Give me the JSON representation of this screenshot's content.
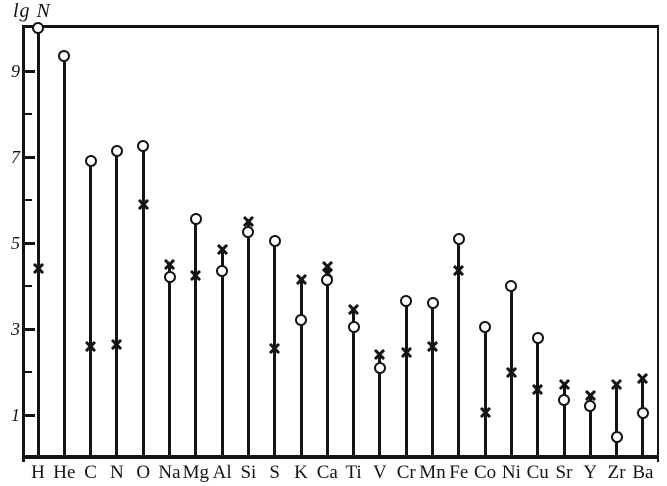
{
  "page": {
    "background": "#ffffff",
    "ink": "#141414"
  },
  "chart_data": {
    "type": "scatter",
    "subtype": "lollipop-abundance-diagram",
    "title": "",
    "xlabel": "",
    "ylabel": "lg N",
    "grid": false,
    "legend_visible": false,
    "y_axis": {
      "range": [
        0,
        10.1
      ],
      "labeled_ticks": [
        9,
        7,
        5,
        3,
        1
      ],
      "minor_ticks": [
        8,
        6,
        4,
        2
      ],
      "tick_label_style": "italic serif"
    },
    "categories": [
      "H",
      "He",
      "C",
      "N",
      "O",
      "Na",
      "Mg",
      "Al",
      "Si",
      "S",
      "K",
      "Ca",
      "Ti",
      "V",
      "Cr",
      "Mn",
      "Fe",
      "Co",
      "Ni",
      "Cu",
      "Sr",
      "Y",
      "Zr",
      "Ba"
    ],
    "series": [
      {
        "name": "open-circle-markers",
        "marker": "open-circle",
        "values": [
          10.0,
          9.35,
          6.9,
          7.15,
          7.25,
          4.2,
          5.55,
          4.35,
          5.25,
          5.05,
          3.2,
          4.15,
          3.05,
          2.1,
          3.65,
          3.6,
          5.1,
          3.05,
          4.0,
          2.8,
          1.35,
          1.2,
          0.5,
          1.05
        ]
      },
      {
        "name": "cross-markers",
        "marker": "x",
        "values": [
          4.4,
          null,
          2.6,
          2.65,
          5.9,
          4.5,
          4.25,
          4.85,
          5.5,
          2.55,
          4.15,
          4.45,
          3.45,
          2.4,
          2.45,
          2.6,
          4.35,
          1.05,
          2.0,
          1.6,
          1.7,
          1.45,
          1.7,
          1.85
        ]
      },
      {
        "name": "secondary-cross-markers",
        "marker": "x",
        "values": [
          null,
          null,
          null,
          null,
          null,
          null,
          null,
          null,
          null,
          null,
          null,
          4.3,
          null,
          null,
          null,
          null,
          null,
          null,
          null,
          null,
          null,
          null,
          null,
          null
        ]
      }
    ]
  }
}
